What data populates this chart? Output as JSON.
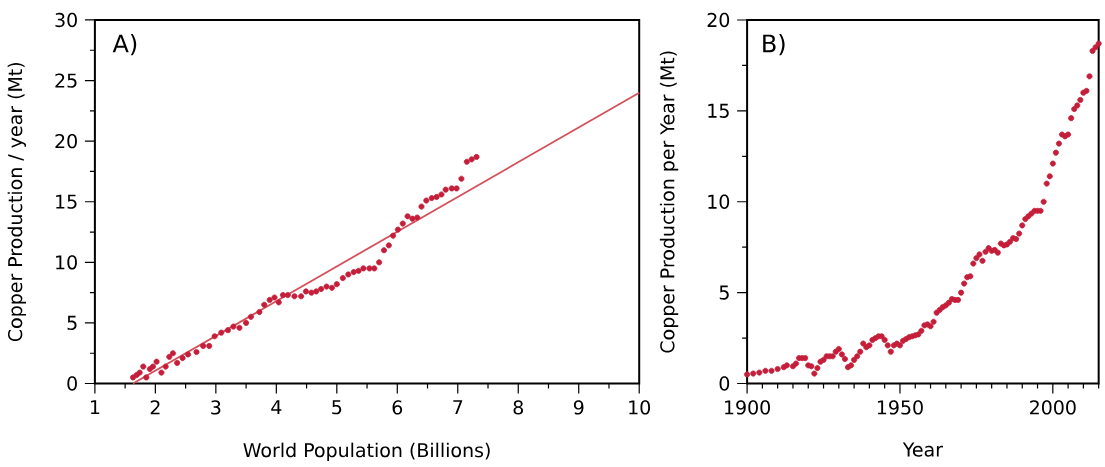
{
  "chart_data": [
    {
      "type": "scatter",
      "xlabel": "World Population (Billions)",
      "ylabel": "Copper Production / year (Mt)",
      "annotations": [
        "A)"
      ],
      "marker": "circle",
      "xlim": [
        1,
        10
      ],
      "ylim": [
        0,
        30
      ],
      "xticks": [
        1,
        2,
        3,
        4,
        5,
        6,
        7,
        8,
        9,
        10,
        {
          "value": 1.5,
          "label": null
        },
        {
          "value": 2.5,
          "label": null
        },
        {
          "value": 3.5,
          "label": null
        },
        {
          "value": 4.5,
          "label": null
        },
        {
          "value": 5.5,
          "label": null
        },
        {
          "value": 6.5,
          "label": null
        },
        {
          "value": 7.5,
          "label": null
        },
        {
          "value": 8.5,
          "label": null
        },
        {
          "value": 9.5,
          "label": null
        }
      ],
      "yticks": [
        0,
        5,
        10,
        15,
        20,
        25,
        30,
        {
          "value": 2.5,
          "label": null
        },
        {
          "value": 7.5,
          "label": null
        },
        {
          "value": 12.5,
          "label": null
        },
        {
          "value": 17.5,
          "label": null
        },
        {
          "value": 22.5,
          "label": null
        },
        {
          "value": 27.5,
          "label": null
        }
      ],
      "series": [
        {
          "color": "#c41e3a",
          "x": [
            1.63,
            1.69,
            1.74,
            1.8,
            1.85,
            1.91,
            1.96,
            2.02,
            2.1,
            2.17,
            2.23,
            2.29,
            2.36,
            2.45,
            2.54,
            2.68,
            2.79,
            2.89,
            2.98,
            3.09,
            3.2,
            3.29,
            3.39,
            3.5,
            3.58,
            3.72,
            3.8,
            3.89,
            3.97,
            4.04,
            4.11,
            4.19,
            4.3,
            4.41,
            4.49,
            4.58,
            4.66,
            4.74,
            4.83,
            4.92,
            5.0,
            5.1,
            5.19,
            5.28,
            5.36,
            5.44,
            5.54,
            5.62,
            5.7,
            5.78,
            5.86,
            5.93,
            6.01,
            6.09,
            6.17,
            6.25,
            6.33,
            6.4,
            6.48,
            6.57,
            6.65,
            6.73,
            6.8,
            6.9,
            6.98,
            7.06,
            7.15,
            7.23,
            7.31
          ],
          "values": [
            0.5,
            0.7,
            0.9,
            1.4,
            0.5,
            1.2,
            1.4,
            1.8,
            0.9,
            1.4,
            2.2,
            2.5,
            1.7,
            2.1,
            2.4,
            2.6,
            3.1,
            3.1,
            3.9,
            4.2,
            4.4,
            4.7,
            4.6,
            5.0,
            5.5,
            5.9,
            6.5,
            6.9,
            7.1,
            6.7,
            7.3,
            7.3,
            7.2,
            7.2,
            7.6,
            7.5,
            7.6,
            7.8,
            8.0,
            7.9,
            8.2,
            8.7,
            9.0,
            9.2,
            9.3,
            9.5,
            9.5,
            9.5,
            10.0,
            11.0,
            11.4,
            12.2,
            12.7,
            13.2,
            13.8,
            13.6,
            13.7,
            14.6,
            15.1,
            15.3,
            15.4,
            15.6,
            16.0,
            16.1,
            16.1,
            16.9,
            18.3,
            18.5,
            18.7
          ]
        },
        {
          "type": "line",
          "marker": "none",
          "color": "#d4505a",
          "x": [
            1.63,
            10
          ],
          "values": [
            0,
            24
          ]
        }
      ]
    },
    {
      "type": "scatter",
      "xlabel": "Year",
      "ylabel": "Copper Production per Year (Mt)",
      "annotations": [
        "B)"
      ],
      "marker": "circle",
      "xlim": [
        1900,
        2015
      ],
      "ylim": [
        0,
        20
      ],
      "xticks": [
        1900,
        1950,
        2000,
        {
          "value": 1905,
          "label": null
        },
        {
          "value": 1910,
          "label": null
        },
        {
          "value": 1915,
          "label": null
        },
        {
          "value": 1920,
          "label": null
        },
        {
          "value": 1925,
          "label": null
        },
        {
          "value": 1930,
          "label": null
        },
        {
          "value": 1935,
          "label": null
        },
        {
          "value": 1940,
          "label": null
        },
        {
          "value": 1945,
          "label": null
        },
        {
          "value": 1955,
          "label": null
        },
        {
          "value": 1960,
          "label": null
        },
        {
          "value": 1965,
          "label": null
        },
        {
          "value": 1970,
          "label": null
        },
        {
          "value": 1975,
          "label": null
        },
        {
          "value": 1980,
          "label": null
        },
        {
          "value": 1985,
          "label": null
        },
        {
          "value": 1990,
          "label": null
        },
        {
          "value": 1995,
          "label": null
        },
        {
          "value": 2005,
          "label": null
        },
        {
          "value": 2010,
          "label": null
        },
        {
          "value": 2015,
          "label": null
        }
      ],
      "yticks": [
        0,
        5,
        10,
        15,
        20,
        {
          "value": 2.5,
          "label": null
        },
        {
          "value": 7.5,
          "label": null
        },
        {
          "value": 12.5,
          "label": null
        },
        {
          "value": 17.5,
          "label": null
        }
      ],
      "series": [
        {
          "color": "#c41e3a",
          "x": [
            1900,
            1902,
            1904,
            1906,
            1908,
            1910,
            1912,
            1913,
            1915,
            1916,
            1917,
            1918,
            1919,
            1920,
            1921,
            1922,
            1923,
            1924,
            1925,
            1926,
            1927,
            1928,
            1929,
            1930,
            1931,
            1932,
            1933,
            1934,
            1935,
            1936,
            1937,
            1938,
            1939,
            1940,
            1941,
            1942,
            1943,
            1944,
            1945,
            1946,
            1947,
            1948,
            1949,
            1950,
            1951,
            1952,
            1953,
            1954,
            1955,
            1956,
            1957,
            1958,
            1959,
            1960,
            1961,
            1962,
            1963,
            1964,
            1965,
            1966,
            1967,
            1968,
            1969,
            1970,
            1971,
            1972,
            1973,
            1974,
            1975,
            1976,
            1977,
            1978,
            1979,
            1980,
            1981,
            1982,
            1983,
            1984,
            1985,
            1986,
            1987,
            1988,
            1989,
            1990,
            1991,
            1992,
            1993,
            1994,
            1995,
            1996,
            1997,
            1998,
            1999,
            2000,
            2001,
            2002,
            2003,
            2004,
            2005,
            2006,
            2007,
            2008,
            2009,
            2010,
            2011,
            2012,
            2013,
            2014,
            2015
          ],
          "values": [
            0.5,
            0.55,
            0.6,
            0.7,
            0.7,
            0.8,
            0.9,
            1.0,
            0.95,
            1.1,
            1.4,
            1.4,
            1.4,
            1.0,
            0.95,
            0.55,
            0.85,
            1.2,
            1.3,
            1.5,
            1.5,
            1.5,
            1.75,
            1.9,
            1.6,
            1.35,
            0.9,
            1.0,
            1.3,
            1.5,
            1.75,
            2.2,
            2.0,
            2.1,
            2.4,
            2.5,
            2.6,
            2.6,
            2.4,
            2.1,
            1.75,
            2.1,
            2.2,
            2.1,
            2.35,
            2.45,
            2.55,
            2.6,
            2.65,
            2.7,
            2.9,
            3.2,
            3.25,
            3.15,
            3.4,
            3.9,
            4.05,
            4.2,
            4.3,
            4.45,
            4.65,
            4.6,
            4.6,
            5.0,
            5.5,
            5.85,
            5.9,
            6.6,
            6.9,
            7.1,
            6.75,
            7.25,
            7.45,
            7.3,
            7.35,
            7.2,
            7.7,
            7.6,
            7.65,
            7.8,
            8.0,
            7.95,
            8.25,
            8.7,
            9.05,
            9.2,
            9.35,
            9.5,
            9.5,
            9.5,
            10.0,
            11.0,
            11.4,
            12.1,
            12.7,
            13.2,
            13.7,
            13.6,
            13.7,
            14.6,
            15.1,
            15.3,
            15.6,
            16.0,
            16.1,
            16.9,
            18.3,
            18.5,
            18.7
          ]
        }
      ]
    }
  ]
}
